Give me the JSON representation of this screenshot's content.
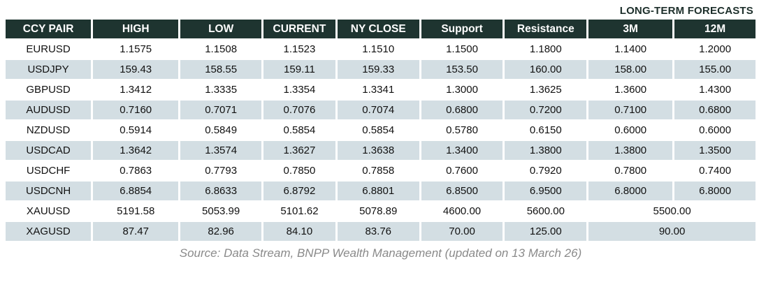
{
  "page": {
    "forecast_label": "LONG-TERM FORECASTS",
    "source_note": "Source: Data Stream, BNPP Wealth Management (updated on 13 March 26)"
  },
  "colors": {
    "header_bg": "#1e3430",
    "header_text": "#ffffff",
    "row_alt_bg": "#d3dee3",
    "row_bg": "#ffffff",
    "text": "#111111",
    "label_text": "#1d2f2b",
    "source_text": "#8a8a8a"
  },
  "table": {
    "headers": [
      "CCY PAIR",
      "HIGH",
      "LOW",
      "CURRENT",
      "NY CLOSE",
      "Support",
      "Resistance",
      "3M",
      "12M"
    ],
    "rows": [
      {
        "pair": "EURUSD",
        "values": [
          "1.1575",
          "1.1508",
          "1.1523",
          "1.1510",
          "1.1500",
          "1.1800",
          "1.1400",
          "1.2000"
        ],
        "merged_forecast": null
      },
      {
        "pair": "USDJPY",
        "values": [
          "159.43",
          "158.55",
          "159.11",
          "159.33",
          "153.50",
          "160.00",
          "158.00",
          "155.00"
        ],
        "merged_forecast": null
      },
      {
        "pair": "GBPUSD",
        "values": [
          "1.3412",
          "1.3335",
          "1.3354",
          "1.3341",
          "1.3000",
          "1.3625",
          "1.3600",
          "1.4300"
        ],
        "merged_forecast": null
      },
      {
        "pair": "AUDUSD",
        "values": [
          "0.7160",
          "0.7071",
          "0.7076",
          "0.7074",
          "0.6800",
          "0.7200",
          "0.7100",
          "0.6800"
        ],
        "merged_forecast": null
      },
      {
        "pair": "NZDUSD",
        "values": [
          "0.5914",
          "0.5849",
          "0.5854",
          "0.5854",
          "0.5780",
          "0.6150",
          "0.6000",
          "0.6000"
        ],
        "merged_forecast": null
      },
      {
        "pair": "USDCAD",
        "values": [
          "1.3642",
          "1.3574",
          "1.3627",
          "1.3638",
          "1.3400",
          "1.3800",
          "1.3800",
          "1.3500"
        ],
        "merged_forecast": null
      },
      {
        "pair": "USDCHF",
        "values": [
          "0.7863",
          "0.7793",
          "0.7850",
          "0.7858",
          "0.7600",
          "0.7920",
          "0.7800",
          "0.7400"
        ],
        "merged_forecast": null
      },
      {
        "pair": "USDCNH",
        "values": [
          "6.8854",
          "6.8633",
          "6.8792",
          "6.8801",
          "6.8500",
          "6.9500",
          "6.8000",
          "6.8000"
        ],
        "merged_forecast": null
      },
      {
        "pair": "XAUUSD",
        "values": [
          "5191.58",
          "5053.99",
          "5101.62",
          "5078.89",
          "4600.00",
          "5600.00"
        ],
        "merged_forecast": "5500.00"
      },
      {
        "pair": "XAGUSD",
        "values": [
          "87.47",
          "82.96",
          "84.10",
          "83.76",
          "70.00",
          "125.00"
        ],
        "merged_forecast": "90.00"
      }
    ]
  },
  "chart_data": {
    "type": "table",
    "title": "LONG-TERM FORECASTS",
    "columns": [
      "CCY PAIR",
      "HIGH",
      "LOW",
      "CURRENT",
      "NY CLOSE",
      "Support",
      "Resistance",
      "3M",
      "12M"
    ],
    "rows": [
      [
        "EURUSD",
        1.1575,
        1.1508,
        1.1523,
        1.151,
        1.15,
        1.18,
        1.14,
        1.2
      ],
      [
        "USDJPY",
        159.43,
        158.55,
        159.11,
        159.33,
        153.5,
        160.0,
        158.0,
        155.0
      ],
      [
        "GBPUSD",
        1.3412,
        1.3335,
        1.3354,
        1.3341,
        1.3,
        1.3625,
        1.36,
        1.43
      ],
      [
        "AUDUSD",
        0.716,
        0.7071,
        0.7076,
        0.7074,
        0.68,
        0.72,
        0.71,
        0.68
      ],
      [
        "NZDUSD",
        0.5914,
        0.5849,
        0.5854,
        0.5854,
        0.578,
        0.615,
        0.6,
        0.6
      ],
      [
        "USDCAD",
        1.3642,
        1.3574,
        1.3627,
        1.3638,
        1.34,
        1.38,
        1.38,
        1.35
      ],
      [
        "USDCHF",
        0.7863,
        0.7793,
        0.785,
        0.7858,
        0.76,
        0.792,
        0.78,
        0.74
      ],
      [
        "USDCNH",
        6.8854,
        6.8633,
        6.8792,
        6.8801,
        6.85,
        6.95,
        6.8,
        6.8
      ],
      [
        "XAUUSD",
        5191.58,
        5053.99,
        5101.62,
        5078.89,
        4600.0,
        5600.0,
        5500.0,
        5500.0
      ],
      [
        "XAGUSD",
        87.47,
        82.96,
        84.1,
        83.76,
        70.0,
        125.0,
        90.0,
        90.0
      ]
    ],
    "notes": "XAUUSD and XAGUSD have a single merged forecast value spanning the 3M and 12M columns (5500.00 and 90.00).",
    "source": "Source: Data Stream, BNPP Wealth Management (updated on 13 March 26)"
  }
}
